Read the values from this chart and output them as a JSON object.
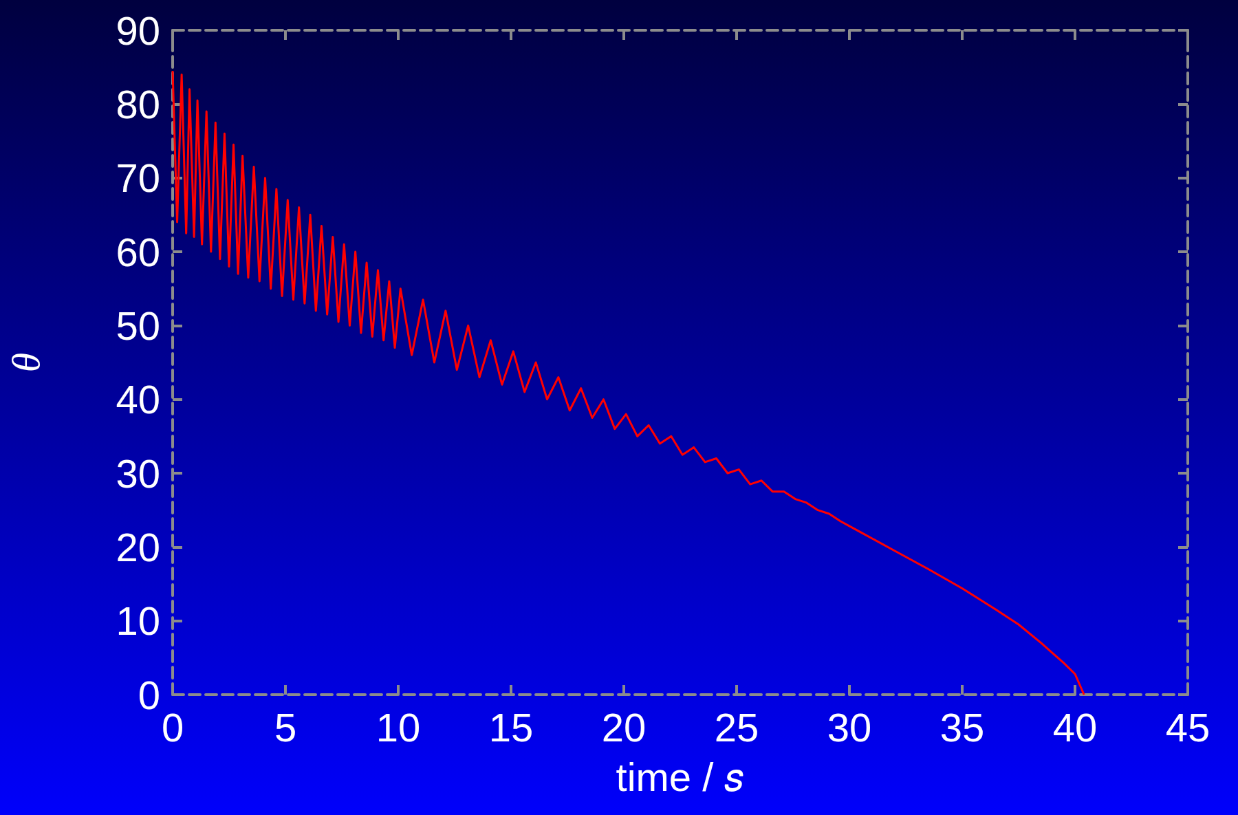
{
  "chart_data": {
    "type": "line",
    "xlabel": "time / 𝑠",
    "ylabel": "θ",
    "xlim": [
      0,
      45
    ],
    "ylim": [
      0,
      90
    ],
    "xticks": [
      0,
      5,
      10,
      15,
      20,
      25,
      30,
      35,
      40,
      45
    ],
    "yticks": [
      0,
      10,
      20,
      30,
      40,
      50,
      60,
      70,
      80,
      90
    ],
    "grid": false,
    "marker": "none",
    "line_style": "solid",
    "series": [
      {
        "color": "#ff0000",
        "x": [
          0,
          0.2,
          0.4,
          0.6,
          0.75,
          0.95,
          1.1,
          1.3,
          1.5,
          1.7,
          1.9,
          2.1,
          2.3,
          2.5,
          2.7,
          2.9,
          3.1,
          3.35,
          3.6,
          3.85,
          4.1,
          4.35,
          4.6,
          4.85,
          5.1,
          5.35,
          5.6,
          5.85,
          6.1,
          6.35,
          6.6,
          6.85,
          7.1,
          7.35,
          7.6,
          7.85,
          8.1,
          8.35,
          8.6,
          8.85,
          9.1,
          9.35,
          9.6,
          9.85,
          10.1,
          10.6,
          11.1,
          11.6,
          12.1,
          12.6,
          13.1,
          13.6,
          14.1,
          14.6,
          15.1,
          15.6,
          16.1,
          16.6,
          17.1,
          17.6,
          18.1,
          18.6,
          19.1,
          19.6,
          20.1,
          20.6,
          21.1,
          21.6,
          22.1,
          22.6,
          23.1,
          23.6,
          24.1,
          24.6,
          25.1,
          25.6,
          26.1,
          26.6,
          27.1,
          27.6,
          28.1,
          28.6,
          29.1,
          29.6,
          30.5,
          32,
          33.5,
          35,
          36.5,
          37.5,
          38.5,
          39.5,
          40,
          40.4
        ],
        "values": [
          84.5,
          64,
          84,
          62.5,
          82,
          62,
          80.5,
          61,
          79,
          60,
          77.5,
          59,
          76,
          58,
          74.5,
          57,
          73,
          56.5,
          71.5,
          56,
          70,
          55,
          68.5,
          54,
          67,
          53.5,
          66,
          53,
          65,
          52,
          63.5,
          51.5,
          62,
          50.5,
          61,
          50,
          60,
          49,
          58.5,
          48.5,
          57.5,
          48,
          56,
          47,
          55,
          46,
          53.5,
          45,
          52,
          44,
          50,
          43,
          48,
          42,
          46.5,
          41,
          45,
          40,
          43,
          38.5,
          41.5,
          37.5,
          40,
          36,
          38,
          35,
          36.5,
          34,
          35,
          32.5,
          33.5,
          31.5,
          32,
          30,
          30.5,
          28.5,
          29,
          27.5,
          27.5,
          26.5,
          26,
          25,
          24.5,
          23.5,
          22,
          19.5,
          17,
          14.4,
          11.5,
          9.5,
          7,
          4.3,
          2.8,
          0
        ]
      }
    ]
  }
}
